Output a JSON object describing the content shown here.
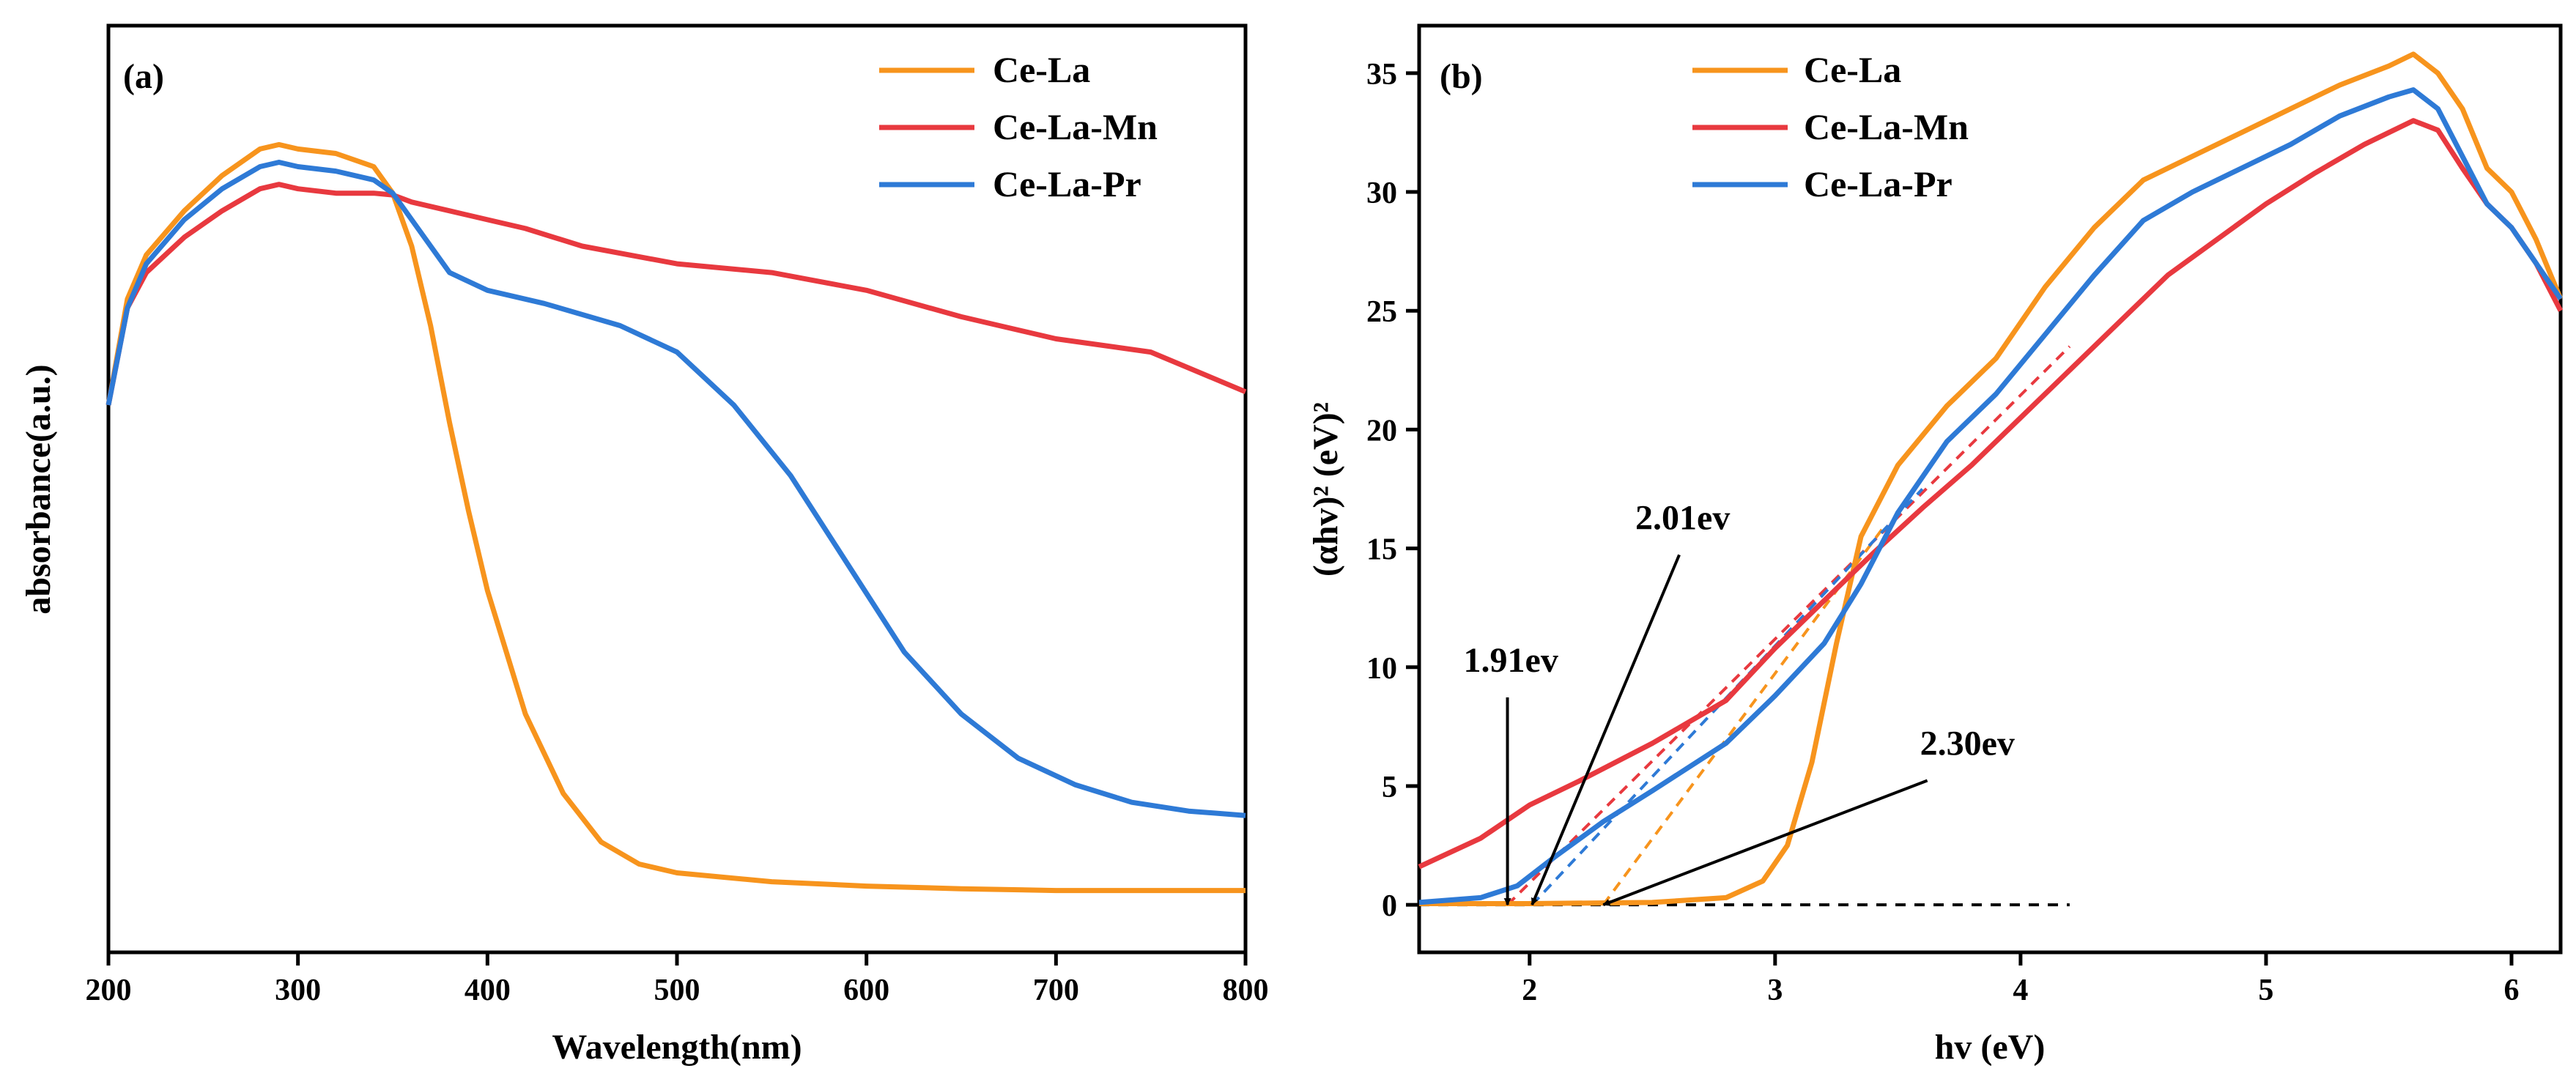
{
  "chart_data": [
    {
      "type": "line",
      "panel_label": "(a)",
      "xlabel": "Wavelength(nm)",
      "ylabel": "absorbance(a.u.)",
      "xlim": [
        200,
        800
      ],
      "ylim": [
        0,
        1
      ],
      "xticks": [
        "200",
        "300",
        "400",
        "500",
        "600",
        "700",
        "800"
      ],
      "yticks_shown": false,
      "legend_position": "top-right",
      "series": [
        {
          "name": "Ce-La",
          "color": "#f7941d",
          "x": [
            200,
            210,
            220,
            240,
            260,
            280,
            290,
            300,
            320,
            340,
            350,
            360,
            370,
            380,
            390,
            400,
            420,
            440,
            460,
            480,
            500,
            550,
            600,
            650,
            700,
            750,
            800
          ],
          "y": [
            0.62,
            0.74,
            0.79,
            0.84,
            0.88,
            0.91,
            0.915,
            0.91,
            0.905,
            0.89,
            0.86,
            0.8,
            0.71,
            0.6,
            0.5,
            0.41,
            0.27,
            0.18,
            0.125,
            0.1,
            0.09,
            0.08,
            0.075,
            0.072,
            0.07,
            0.07,
            0.07
          ]
        },
        {
          "name": "Ce-La-Mn",
          "color": "#e8393f",
          "x": [
            200,
            210,
            220,
            240,
            260,
            280,
            290,
            300,
            320,
            340,
            350,
            360,
            380,
            400,
            420,
            450,
            500,
            550,
            600,
            650,
            700,
            750,
            800
          ],
          "y": [
            0.62,
            0.73,
            0.77,
            0.81,
            0.84,
            0.865,
            0.87,
            0.865,
            0.86,
            0.86,
            0.858,
            0.85,
            0.84,
            0.83,
            0.82,
            0.8,
            0.78,
            0.77,
            0.75,
            0.72,
            0.695,
            0.68,
            0.635
          ]
        },
        {
          "name": "Ce-La-Pr",
          "color": "#2e7ad6",
          "x": [
            200,
            210,
            220,
            240,
            260,
            280,
            290,
            300,
            320,
            340,
            350,
            360,
            380,
            400,
            430,
            470,
            500,
            530,
            560,
            590,
            620,
            650,
            680,
            710,
            740,
            770,
            800
          ],
          "y": [
            0.62,
            0.73,
            0.78,
            0.83,
            0.865,
            0.89,
            0.895,
            0.89,
            0.885,
            0.875,
            0.86,
            0.83,
            0.77,
            0.75,
            0.735,
            0.71,
            0.68,
            0.62,
            0.54,
            0.44,
            0.34,
            0.27,
            0.22,
            0.19,
            0.17,
            0.16,
            0.155
          ]
        }
      ]
    },
    {
      "type": "line",
      "panel_label": "(b)",
      "xlabel": "hv (eV)",
      "ylabel": "(αhv)² (eV)²",
      "xlim": [
        1.55,
        6.2
      ],
      "ylim": [
        -2,
        37
      ],
      "xticks": [
        2,
        3,
        4,
        5,
        6
      ],
      "yticks": [
        0,
        5,
        10,
        15,
        20,
        25,
        30,
        35
      ],
      "legend_position": "top-left",
      "series": [
        {
          "name": "Ce-La",
          "color": "#f7941d",
          "x": [
            1.55,
            2.0,
            2.5,
            2.8,
            2.95,
            3.05,
            3.15,
            3.25,
            3.35,
            3.5,
            3.7,
            3.9,
            4.1,
            4.3,
            4.5,
            4.7,
            4.9,
            5.1,
            5.3,
            5.5,
            5.6,
            5.7,
            5.8,
            5.9,
            6.0,
            6.1,
            6.2
          ],
          "y": [
            0.05,
            0.05,
            0.1,
            0.3,
            1.0,
            2.5,
            6.0,
            11.0,
            15.5,
            18.5,
            21.0,
            23.0,
            26.0,
            28.5,
            30.5,
            31.5,
            32.5,
            33.5,
            34.5,
            35.3,
            35.8,
            35.0,
            33.5,
            31.0,
            30.0,
            28.0,
            25.5
          ]
        },
        {
          "name": "Ce-La-Mn",
          "color": "#e8393f",
          "x": [
            1.55,
            1.8,
            2.0,
            2.2,
            2.5,
            2.8,
            3.0,
            3.2,
            3.4,
            3.6,
            3.8,
            4.0,
            4.2,
            4.4,
            4.6,
            4.8,
            5.0,
            5.2,
            5.4,
            5.6,
            5.7,
            5.8,
            5.9,
            6.0,
            6.1,
            6.2
          ],
          "y": [
            1.6,
            2.8,
            4.2,
            5.2,
            6.8,
            8.6,
            10.8,
            12.8,
            14.8,
            16.7,
            18.5,
            20.5,
            22.5,
            24.5,
            26.5,
            28.0,
            29.5,
            30.8,
            32.0,
            33.0,
            32.6,
            31.0,
            29.5,
            28.5,
            27.0,
            25.0
          ]
        },
        {
          "name": "Ce-La-Pr",
          "color": "#2e7ad6",
          "x": [
            1.55,
            1.8,
            1.95,
            2.1,
            2.3,
            2.5,
            2.8,
            3.0,
            3.2,
            3.35,
            3.5,
            3.7,
            3.9,
            4.1,
            4.3,
            4.5,
            4.7,
            4.9,
            5.1,
            5.3,
            5.5,
            5.6,
            5.7,
            5.8,
            5.9,
            6.0,
            6.1,
            6.2
          ],
          "y": [
            0.1,
            0.3,
            0.8,
            2.0,
            3.5,
            4.8,
            6.8,
            8.8,
            11.0,
            13.5,
            16.5,
            19.5,
            21.5,
            24.0,
            26.5,
            28.8,
            30.0,
            31.0,
            32.0,
            33.2,
            34.0,
            34.3,
            33.5,
            31.5,
            29.5,
            28.5,
            27.0,
            25.5
          ]
        }
      ],
      "fit_lines": [
        {
          "series": "Ce-La",
          "color": "#f7941d",
          "x": [
            2.3,
            3.45
          ],
          "y": [
            0,
            16.0
          ]
        },
        {
          "series": "Ce-La-Mn",
          "color": "#e8393f",
          "x": [
            1.91,
            4.2
          ],
          "y": [
            0,
            23.5
          ]
        },
        {
          "series": "Ce-La-Pr",
          "color": "#2e7ad6",
          "x": [
            2.01,
            3.6
          ],
          "y": [
            0,
            17.5
          ]
        }
      ],
      "baseline": {
        "x": [
          1.55,
          4.2
        ],
        "y": 0,
        "color": "#000000"
      },
      "annotations": [
        {
          "text": "1.91ev",
          "target_x": 1.91,
          "target_y": 0,
          "label_x": 1.85,
          "label_y": 9.5
        },
        {
          "text": "2.01ev",
          "target_x": 2.01,
          "target_y": 0,
          "label_x": 2.55,
          "label_y": 15.5
        },
        {
          "text": "2.30ev",
          "target_x": 2.3,
          "target_y": 0,
          "label_x": 3.65,
          "label_y": 6.0
        }
      ]
    }
  ]
}
